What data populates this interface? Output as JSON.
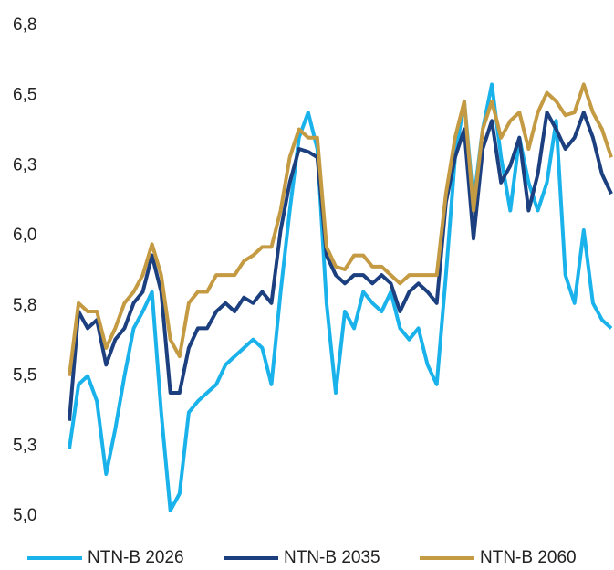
{
  "chart_data": {
    "type": "line",
    "categories": [
      null,
      null,
      null,
      null,
      null,
      null,
      null,
      null,
      null,
      null,
      null,
      null,
      null,
      null,
      null,
      null,
      null,
      null,
      null,
      null,
      null,
      null,
      null,
      null,
      null,
      null,
      null,
      null,
      null,
      null,
      null,
      null,
      null,
      null,
      null,
      null,
      null,
      null,
      null,
      null,
      null,
      null,
      null,
      null,
      null,
      null,
      null,
      null,
      null,
      null,
      null,
      null,
      null,
      null,
      null,
      null,
      null,
      null,
      null,
      null
    ],
    "series": [
      {
        "name": "NTN-B 2026",
        "color": "#1ab2ea",
        "values": [
          5.24,
          5.47,
          5.5,
          5.41,
          5.15,
          5.31,
          5.5,
          5.67,
          5.73,
          5.8,
          5.37,
          5.02,
          5.08,
          5.37,
          5.41,
          5.44,
          5.47,
          5.54,
          5.57,
          5.6,
          5.63,
          5.6,
          5.47,
          5.8,
          6.09,
          6.35,
          6.44,
          6.31,
          5.76,
          5.44,
          5.73,
          5.67,
          5.8,
          5.76,
          5.73,
          5.8,
          5.67,
          5.63,
          5.67,
          5.54,
          5.47,
          5.86,
          6.28,
          6.48,
          6.12,
          6.38,
          6.54,
          6.28,
          6.09,
          6.35,
          6.19,
          6.09,
          6.19,
          6.41,
          5.86,
          5.76,
          6.02,
          5.76,
          5.7,
          5.67
        ]
      },
      {
        "name": "NTN-B 2035",
        "color": "#1c3f7f",
        "values": [
          5.34,
          5.73,
          5.67,
          5.7,
          5.54,
          5.63,
          5.67,
          5.76,
          5.8,
          5.93,
          5.8,
          5.44,
          5.44,
          5.6,
          5.67,
          5.67,
          5.73,
          5.76,
          5.73,
          5.78,
          5.76,
          5.8,
          5.76,
          6.02,
          6.19,
          6.31,
          6.3,
          6.28,
          5.93,
          5.86,
          5.83,
          5.86,
          5.86,
          5.83,
          5.86,
          5.83,
          5.73,
          5.8,
          5.83,
          5.8,
          5.76,
          6.12,
          6.28,
          6.38,
          5.99,
          6.31,
          6.41,
          6.19,
          6.25,
          6.35,
          6.09,
          6.22,
          6.44,
          6.38,
          6.31,
          6.35,
          6.44,
          6.35,
          6.22,
          6.15
        ]
      },
      {
        "name": "NTN-B 2060",
        "color": "#c49a43",
        "values": [
          5.5,
          5.76,
          5.73,
          5.73,
          5.6,
          5.67,
          5.76,
          5.8,
          5.86,
          5.97,
          5.86,
          5.63,
          5.57,
          5.76,
          5.8,
          5.8,
          5.86,
          5.86,
          5.86,
          5.91,
          5.93,
          5.96,
          5.96,
          6.09,
          6.28,
          6.38,
          6.35,
          6.35,
          5.96,
          5.89,
          5.88,
          5.93,
          5.93,
          5.89,
          5.89,
          5.86,
          5.83,
          5.86,
          5.86,
          5.86,
          5.86,
          6.15,
          6.35,
          6.48,
          6.09,
          6.38,
          6.48,
          6.35,
          6.41,
          6.44,
          6.31,
          6.44,
          6.51,
          6.48,
          6.43,
          6.44,
          6.54,
          6.44,
          6.38,
          6.28
        ]
      }
    ],
    "ylim": [
      5,
      6.75
    ],
    "yticks": [
      {
        "value": 5,
        "label": "5,0"
      },
      {
        "value": 5.25,
        "label": "5,3"
      },
      {
        "value": 5.5,
        "label": "5,5"
      },
      {
        "value": 5.75,
        "label": "5,8"
      },
      {
        "value": 6,
        "label": "6,0"
      },
      {
        "value": 6.25,
        "label": "6,3"
      },
      {
        "value": 6.5,
        "label": "6,5"
      },
      {
        "value": 6.75,
        "label": "6,8"
      }
    ],
    "grid": false,
    "legend": "bottom"
  }
}
